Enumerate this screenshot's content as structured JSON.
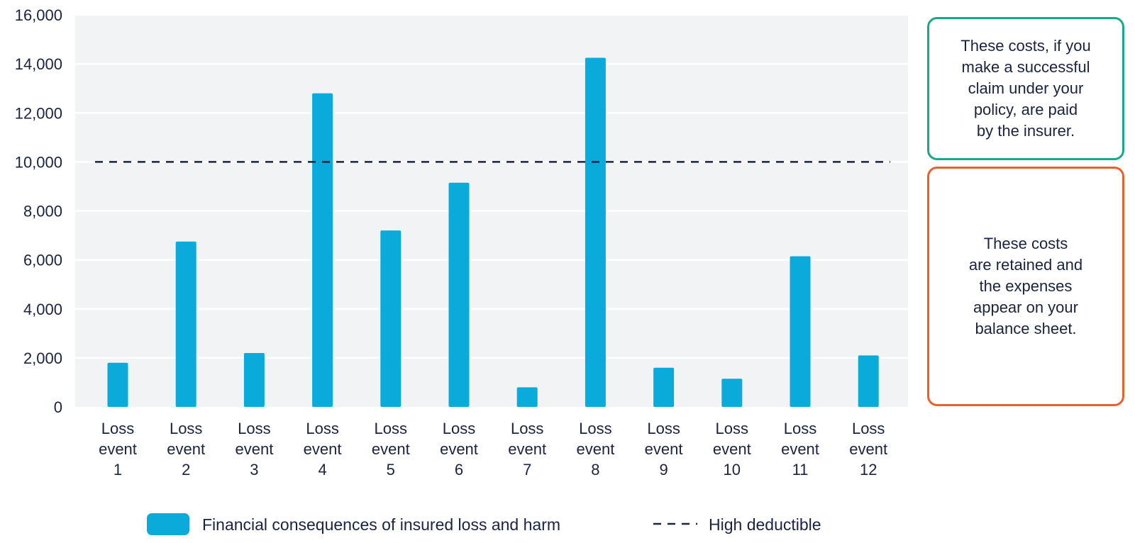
{
  "chart_data": {
    "type": "bar",
    "categories": [
      [
        "Loss",
        "event",
        "1"
      ],
      [
        "Loss",
        "event",
        "2"
      ],
      [
        "Loss",
        "event",
        "3"
      ],
      [
        "Loss",
        "event",
        "4"
      ],
      [
        "Loss",
        "event",
        "5"
      ],
      [
        "Loss",
        "event",
        "6"
      ],
      [
        "Loss",
        "event",
        "7"
      ],
      [
        "Loss",
        "event",
        "8"
      ],
      [
        "Loss",
        "event",
        "9"
      ],
      [
        "Loss",
        "event",
        "10"
      ],
      [
        "Loss",
        "event",
        "11"
      ],
      [
        "Loss",
        "event",
        "12"
      ]
    ],
    "series": [
      {
        "name": "Financial consequences of insured loss and harm",
        "color": "#0aaadb",
        "values": [
          1800,
          6750,
          2200,
          12800,
          7200,
          9150,
          800,
          14250,
          1600,
          1150,
          6150,
          2100
        ]
      }
    ],
    "reference_line": {
      "name": "High deductible",
      "value": 10000,
      "style": "dashed",
      "color": "#1a2340"
    },
    "ylim": [
      0,
      16000
    ],
    "y_ticks": [
      0,
      2000,
      4000,
      6000,
      8000,
      10000,
      12000,
      14000,
      16000
    ],
    "y_tick_labels": [
      "0",
      "2,000",
      "4,000",
      "6,000",
      "8,000",
      "10,000",
      "12,000",
      "14,000",
      "16,000"
    ],
    "grid": true,
    "plot_background": "#f2f3f5",
    "legend": "bottom-center",
    "title": "",
    "xlabel": "",
    "ylabel": ""
  },
  "callouts": {
    "above_deductible": "These costs, if you\nmake a successful\nclaim under your\npolicy, are paid\nby the insurer.",
    "below_deductible": "These costs\nare retained and\nthe expenses\nappear on your\nbalance sheet."
  },
  "colors": {
    "callout_above_border": "#1aa88a",
    "callout_below_border": "#e8602c"
  }
}
